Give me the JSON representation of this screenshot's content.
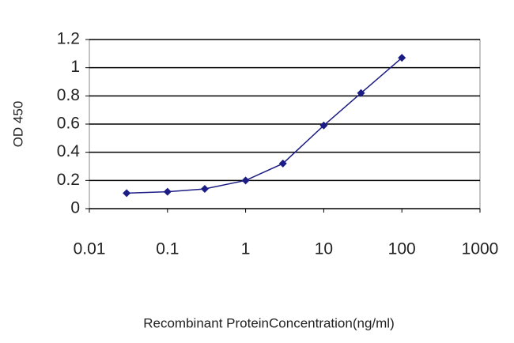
{
  "chart_data": {
    "type": "line",
    "y_label": "OD 450",
    "x_label": "Recombinant ProteinConcentration(ng/ml)",
    "x": [
      0.03,
      0.1,
      0.3,
      1,
      3,
      10,
      30,
      100
    ],
    "series": [
      {
        "color": "#1c1c85",
        "values": [
          0.11,
          0.12,
          0.14,
          0.2,
          0.32,
          0.59,
          0.82,
          1.07
        ]
      }
    ],
    "xscale": "log",
    "xlim": [
      0.01,
      1000
    ],
    "xticks": [
      0.01,
      0.1,
      1,
      10,
      100,
      1000
    ],
    "ylim": [
      0,
      1.2
    ],
    "yticks": [
      0,
      0.2,
      0.4,
      0.6,
      0.8,
      1,
      1.2
    ],
    "grid": true
  }
}
